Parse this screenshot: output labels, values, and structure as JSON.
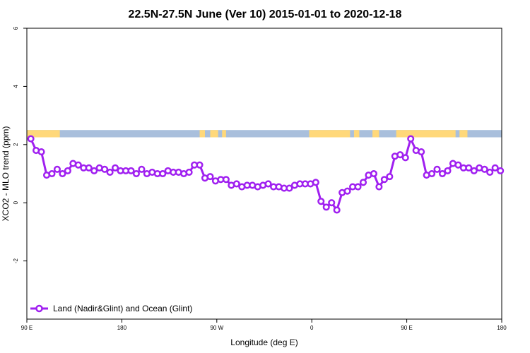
{
  "chart_data": {
    "type": "line",
    "title": "22.5N-27.5N June (Ver 10)   2015-01-01 to 2020-12-18",
    "xlabel": "Longitude (deg E)",
    "ylabel": "XCO2 - MLO trend (ppm)",
    "xlim": [
      90,
      450
    ],
    "ylim": [
      -4,
      6
    ],
    "x_ticks": [
      {
        "value": 90,
        "label": "90 E"
      },
      {
        "value": 162,
        "label": "180"
      },
      {
        "value": 234,
        "label": "90 W"
      },
      {
        "value": 306,
        "label": "0"
      },
      {
        "value": 378,
        "label": "90 E"
      },
      {
        "value": 450,
        "label": "180"
      }
    ],
    "y_ticks": [
      {
        "value": -2,
        "label": "-2"
      },
      {
        "value": 0,
        "label": "0"
      },
      {
        "value": 2,
        "label": "2"
      },
      {
        "value": 4,
        "label": "4"
      },
      {
        "value": 6,
        "label": "6"
      }
    ],
    "grid": false,
    "legend_position": "bottom-left",
    "land_mask": {
      "land_color": "#ffd87a",
      "ocean_color": "#a9bfdc",
      "band_y": [
        2.25,
        2.5
      ],
      "land_ranges": [
        [
          90,
          115
        ],
        [
          221,
          225
        ],
        [
          229,
          235
        ],
        [
          238,
          241
        ],
        [
          304,
          335
        ],
        [
          338,
          342
        ],
        [
          352,
          357
        ],
        [
          370,
          415
        ],
        [
          418,
          424
        ]
      ]
    },
    "series": [
      {
        "name": "Land (Nadir&Glint) and Ocean (Glint)",
        "color": "#a020f0",
        "x": [
          93,
          97,
          101,
          105,
          109,
          113,
          117,
          121,
          125,
          129,
          133,
          137,
          141,
          145,
          149,
          153,
          157,
          161,
          165,
          169,
          173,
          177,
          181,
          185,
          189,
          193,
          197,
          201,
          205,
          209,
          213,
          217,
          221,
          225,
          229,
          233,
          237,
          241,
          245,
          249,
          253,
          257,
          261,
          265,
          269,
          273,
          277,
          281,
          285,
          289,
          293,
          297,
          301,
          305,
          309,
          313,
          317,
          321,
          325,
          329,
          333,
          337,
          341,
          345,
          349,
          353,
          357,
          361,
          365,
          369,
          373,
          377,
          381,
          385,
          389,
          393,
          397,
          401,
          405,
          409,
          413,
          417,
          421,
          425,
          429,
          433,
          437,
          441,
          445,
          449
        ],
        "y": [
          2.2,
          1.8,
          1.75,
          0.95,
          1.0,
          1.15,
          1.0,
          1.1,
          1.35,
          1.3,
          1.2,
          1.2,
          1.1,
          1.2,
          1.15,
          1.05,
          1.2,
          1.1,
          1.1,
          1.1,
          1.0,
          1.15,
          1.0,
          1.05,
          1.0,
          1.0,
          1.1,
          1.05,
          1.05,
          1.0,
          1.05,
          1.3,
          1.3,
          0.85,
          0.9,
          0.75,
          0.8,
          0.8,
          0.6,
          0.65,
          0.55,
          0.6,
          0.6,
          0.55,
          0.6,
          0.65,
          0.55,
          0.55,
          0.5,
          0.5,
          0.6,
          0.65,
          0.65,
          0.65,
          0.7,
          0.05,
          -0.15,
          0.0,
          -0.25,
          0.35,
          0.4,
          0.55,
          0.55,
          0.7,
          0.95,
          1.0,
          0.55,
          0.8,
          0.9,
          1.6,
          1.65,
          1.55,
          2.2,
          1.8,
          1.75,
          0.95,
          1.0,
          1.15,
          1.0,
          1.1,
          1.35,
          1.3,
          1.2,
          1.2,
          1.1,
          1.2,
          1.15,
          1.05,
          1.2,
          1.1
        ]
      }
    ]
  }
}
